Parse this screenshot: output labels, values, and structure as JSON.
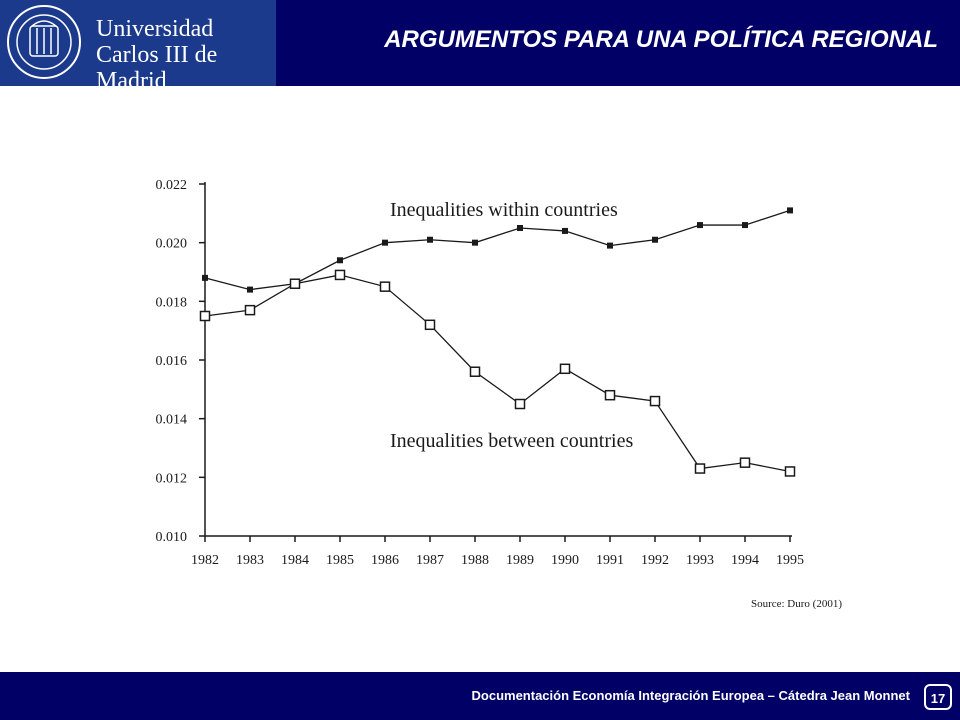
{
  "header": {
    "logo_line1": "Universidad",
    "logo_line2": "Carlos III de Madrid",
    "title": "ARGUMENTOS PARA UNA POLÍTICA REGIONAL"
  },
  "footer": {
    "text": "Documentación Economía Integración Europea – Cátedra Jean Monnet",
    "page_number": "17"
  },
  "colors": {
    "header_bg": "#000066",
    "logo_bg": "#1b3a8c",
    "text_on_dark": "#ffffff",
    "chart_ink": "#1a1a1a"
  },
  "chart_data": {
    "type": "line",
    "title": "",
    "xlabel": "",
    "ylabel": "",
    "x": [
      1982,
      1983,
      1984,
      1985,
      1986,
      1987,
      1988,
      1989,
      1990,
      1991,
      1992,
      1993,
      1994,
      1995
    ],
    "ylim": [
      0.01,
      0.022
    ],
    "y_ticks": [
      "0.010",
      "0.012",
      "0.014",
      "0.016",
      "0.018",
      "0.020",
      "0.022"
    ],
    "grid": false,
    "series": [
      {
        "name": "Inequalities within countries",
        "marker": "filled-square",
        "values": [
          0.0188,
          0.0184,
          0.0186,
          0.0194,
          0.02,
          0.0201,
          0.02,
          0.0205,
          0.0204,
          0.0199,
          0.0201,
          0.0206,
          0.0206,
          0.0211
        ]
      },
      {
        "name": "Inequalities between countries",
        "marker": "open-square",
        "values": [
          0.0175,
          0.0177,
          0.0186,
          0.0189,
          0.0185,
          0.0172,
          0.0156,
          0.0145,
          0.0157,
          0.0148,
          0.0146,
          0.0123,
          0.0125,
          0.0122
        ]
      }
    ],
    "source": "Source: Duro (2001)"
  }
}
